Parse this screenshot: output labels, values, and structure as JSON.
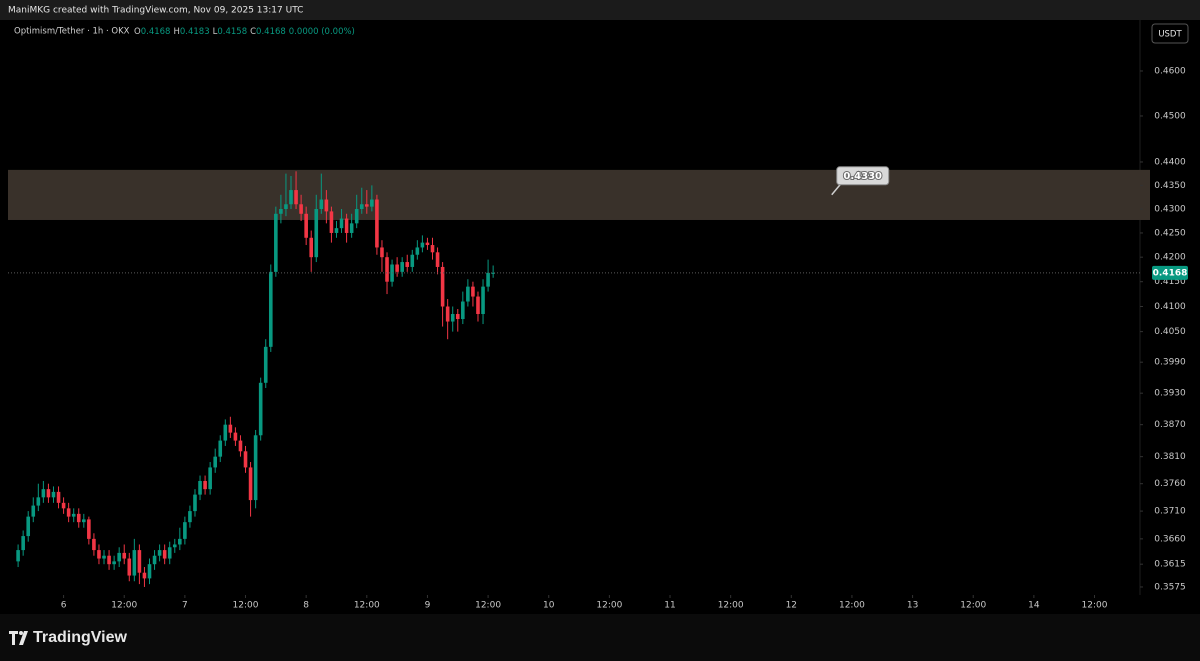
{
  "header": {
    "attribution": "ManiMKG created with TradingView.com, Nov 09, 2025 13:17 UTC"
  },
  "footer": {
    "logo_text": "TradingView"
  },
  "chart_data": {
    "type": "candlestick",
    "symbol": "Optimism/Tether · 1h · OKX",
    "legend": [
      "O",
      "0.4168",
      "H",
      "0.4183",
      "L",
      "0.4158",
      "C",
      "0.4168",
      "0.0000 (0.00%)"
    ],
    "currency": "USDT",
    "log_scale": true,
    "grid": false,
    "up_color": "#089981",
    "down_color": "#f23645",
    "zone_color": "#39312a",
    "x": [
      -9,
      -8,
      -7,
      -6,
      -5,
      -4,
      -3,
      -2,
      -1,
      0,
      1,
      2,
      3,
      4,
      5,
      6,
      7,
      8,
      9,
      10,
      11,
      12,
      13,
      14,
      15,
      16,
      17,
      18,
      19,
      20,
      21,
      22,
      23,
      24,
      25,
      26,
      27,
      28,
      29,
      30,
      31,
      32,
      33,
      34,
      35,
      36,
      37,
      38,
      39,
      40,
      41,
      42,
      43,
      44,
      45,
      46,
      47,
      48,
      49,
      50,
      51,
      52,
      53,
      54,
      55,
      56,
      57,
      58,
      59,
      60,
      61,
      62,
      63,
      64,
      65,
      66,
      67,
      68,
      69,
      70,
      71,
      72,
      73,
      74,
      75,
      76,
      77,
      78,
      79,
      80,
      81,
      82,
      83,
      84,
      85
    ],
    "open": [
      0.362,
      0.364,
      0.3665,
      0.37,
      0.372,
      0.3735,
      0.375,
      0.3735,
      0.3745,
      0.3725,
      0.3715,
      0.37,
      0.3705,
      0.369,
      0.3695,
      0.366,
      0.364,
      0.3625,
      0.363,
      0.3615,
      0.362,
      0.3635,
      0.3625,
      0.3595,
      0.364,
      0.36,
      0.359,
      0.3615,
      0.363,
      0.364,
      0.3625,
      0.3645,
      0.365,
      0.366,
      0.369,
      0.371,
      0.374,
      0.3765,
      0.375,
      0.379,
      0.381,
      0.384,
      0.387,
      0.3855,
      0.384,
      0.382,
      0.379,
      0.373,
      0.385,
      0.395,
      0.402,
      0.417,
      0.429,
      0.43,
      0.431,
      0.434,
      0.431,
      0.429,
      0.424,
      0.42,
      0.43,
      0.432,
      0.4295,
      0.425,
      0.426,
      0.428,
      0.425,
      0.427,
      0.43,
      0.431,
      0.4305,
      0.432,
      0.422,
      0.42,
      0.415,
      0.4185,
      0.417,
      0.419,
      0.418,
      0.4205,
      0.422,
      0.423,
      0.4225,
      0.421,
      0.418,
      0.41,
      0.407,
      0.4085,
      0.4075,
      0.411,
      0.414,
      0.412,
      0.4085,
      0.414,
      0.4168
    ],
    "high": [
      0.365,
      0.3675,
      0.371,
      0.3735,
      0.376,
      0.3765,
      0.376,
      0.3755,
      0.3755,
      0.3735,
      0.3725,
      0.3715,
      0.3715,
      0.3705,
      0.37,
      0.367,
      0.365,
      0.364,
      0.364,
      0.363,
      0.3645,
      0.365,
      0.3635,
      0.366,
      0.365,
      0.361,
      0.3625,
      0.364,
      0.365,
      0.365,
      0.3655,
      0.366,
      0.368,
      0.37,
      0.372,
      0.375,
      0.3775,
      0.3775,
      0.38,
      0.3825,
      0.385,
      0.388,
      0.3885,
      0.3865,
      0.385,
      0.383,
      0.38,
      0.386,
      0.396,
      0.4035,
      0.4185,
      0.4305,
      0.433,
      0.4375,
      0.437,
      0.438,
      0.433,
      0.4305,
      0.4255,
      0.433,
      0.4375,
      0.434,
      0.4305,
      0.4275,
      0.43,
      0.429,
      0.429,
      0.433,
      0.4345,
      0.434,
      0.435,
      0.433,
      0.4235,
      0.421,
      0.4195,
      0.42,
      0.42,
      0.4205,
      0.4215,
      0.4235,
      0.4245,
      0.424,
      0.424,
      0.422,
      0.419,
      0.4115,
      0.41,
      0.4095,
      0.413,
      0.4155,
      0.415,
      0.413,
      0.4155,
      0.4195,
      0.4183
    ],
    "low": [
      0.361,
      0.363,
      0.3655,
      0.369,
      0.371,
      0.3725,
      0.3725,
      0.3725,
      0.3715,
      0.3705,
      0.369,
      0.369,
      0.368,
      0.368,
      0.365,
      0.363,
      0.3615,
      0.3615,
      0.3605,
      0.3605,
      0.361,
      0.3615,
      0.3585,
      0.3585,
      0.358,
      0.3575,
      0.358,
      0.3605,
      0.362,
      0.3615,
      0.3615,
      0.3635,
      0.364,
      0.365,
      0.368,
      0.37,
      0.373,
      0.374,
      0.374,
      0.378,
      0.38,
      0.383,
      0.3845,
      0.383,
      0.381,
      0.378,
      0.37,
      0.3715,
      0.384,
      0.394,
      0.401,
      0.416,
      0.427,
      0.4285,
      0.43,
      0.43,
      0.4275,
      0.4225,
      0.417,
      0.419,
      0.429,
      0.427,
      0.423,
      0.424,
      0.425,
      0.423,
      0.424,
      0.426,
      0.429,
      0.429,
      0.4295,
      0.4205,
      0.417,
      0.4125,
      0.414,
      0.416,
      0.416,
      0.417,
      0.417,
      0.4195,
      0.421,
      0.4215,
      0.4195,
      0.4165,
      0.406,
      0.4035,
      0.405,
      0.405,
      0.4065,
      0.41,
      0.41,
      0.407,
      0.4065,
      0.413,
      0.4158
    ],
    "close": [
      0.364,
      0.3665,
      0.37,
      0.372,
      0.3735,
      0.375,
      0.3735,
      0.3745,
      0.3725,
      0.3715,
      0.37,
      0.3705,
      0.369,
      0.3695,
      0.366,
      0.364,
      0.3625,
      0.363,
      0.3615,
      0.362,
      0.3635,
      0.3625,
      0.3595,
      0.364,
      0.36,
      0.359,
      0.3615,
      0.363,
      0.364,
      0.3625,
      0.3645,
      0.365,
      0.366,
      0.369,
      0.371,
      0.374,
      0.3765,
      0.375,
      0.379,
      0.381,
      0.384,
      0.387,
      0.3855,
      0.384,
      0.382,
      0.379,
      0.373,
      0.385,
      0.395,
      0.402,
      0.417,
      0.429,
      0.43,
      0.431,
      0.434,
      0.431,
      0.429,
      0.424,
      0.42,
      0.43,
      0.432,
      0.4295,
      0.425,
      0.426,
      0.428,
      0.425,
      0.427,
      0.43,
      0.431,
      0.4305,
      0.432,
      0.422,
      0.42,
      0.415,
      0.4185,
      0.417,
      0.419,
      0.418,
      0.4205,
      0.422,
      0.423,
      0.4225,
      0.421,
      0.418,
      0.41,
      0.407,
      0.4085,
      0.4075,
      0.411,
      0.414,
      0.412,
      0.4085,
      0.414,
      0.4168,
      0.4168
    ],
    "zone": [
      0.4277,
      0.4383
    ],
    "annotation": {
      "x": 152,
      "value": 0.433,
      "label": "0.4330"
    },
    "xlim": [
      -11,
      213
    ],
    "xticks": [
      {
        "value": 0,
        "label": "6"
      },
      {
        "value": 12,
        "label": "12:00"
      },
      {
        "value": 24,
        "label": "7"
      },
      {
        "value": 36,
        "label": "12:00"
      },
      {
        "value": 48,
        "label": "8"
      },
      {
        "value": 60,
        "label": "12:00"
      },
      {
        "value": 72,
        "label": "9"
      },
      {
        "value": 84,
        "label": "12:00"
      },
      {
        "value": 96,
        "label": "10"
      },
      {
        "value": 108,
        "label": "12:00"
      },
      {
        "value": 120,
        "label": "11"
      },
      {
        "value": 132,
        "label": "12:00"
      },
      {
        "value": 144,
        "label": "12"
      },
      {
        "value": 156,
        "label": "12:00"
      },
      {
        "value": 168,
        "label": "13"
      },
      {
        "value": 180,
        "label": "12:00"
      },
      {
        "value": 192,
        "label": "14"
      },
      {
        "value": 204,
        "label": "12:00"
      }
    ],
    "ylim": [
      0.3561,
      0.4716
    ],
    "yticks": [
      {
        "value": 0.46,
        "label": "0.4600"
      },
      {
        "value": 0.45,
        "label": "0.4500"
      },
      {
        "value": 0.44,
        "label": "0.4400"
      },
      {
        "value": 0.435,
        "label": "0.4350"
      },
      {
        "value": 0.43,
        "label": "0.4300"
      },
      {
        "value": 0.425,
        "label": "0.4250"
      },
      {
        "value": 0.42,
        "label": "0.4200"
      },
      {
        "value": 0.415,
        "label": "0.4150"
      },
      {
        "value": 0.41,
        "label": "0.4100"
      },
      {
        "value": 0.405,
        "label": "0.4050"
      },
      {
        "value": 0.399,
        "label": "0.3990"
      },
      {
        "value": 0.393,
        "label": "0.3930"
      },
      {
        "value": 0.387,
        "label": "0.3870"
      },
      {
        "value": 0.381,
        "label": "0.3810"
      },
      {
        "value": 0.376,
        "label": "0.3760"
      },
      {
        "value": 0.371,
        "label": "0.3710"
      },
      {
        "value": 0.366,
        "label": "0.3660"
      },
      {
        "value": 0.3615,
        "label": "0.3615"
      },
      {
        "value": 0.3575,
        "label": "0.3575"
      }
    ]
  }
}
